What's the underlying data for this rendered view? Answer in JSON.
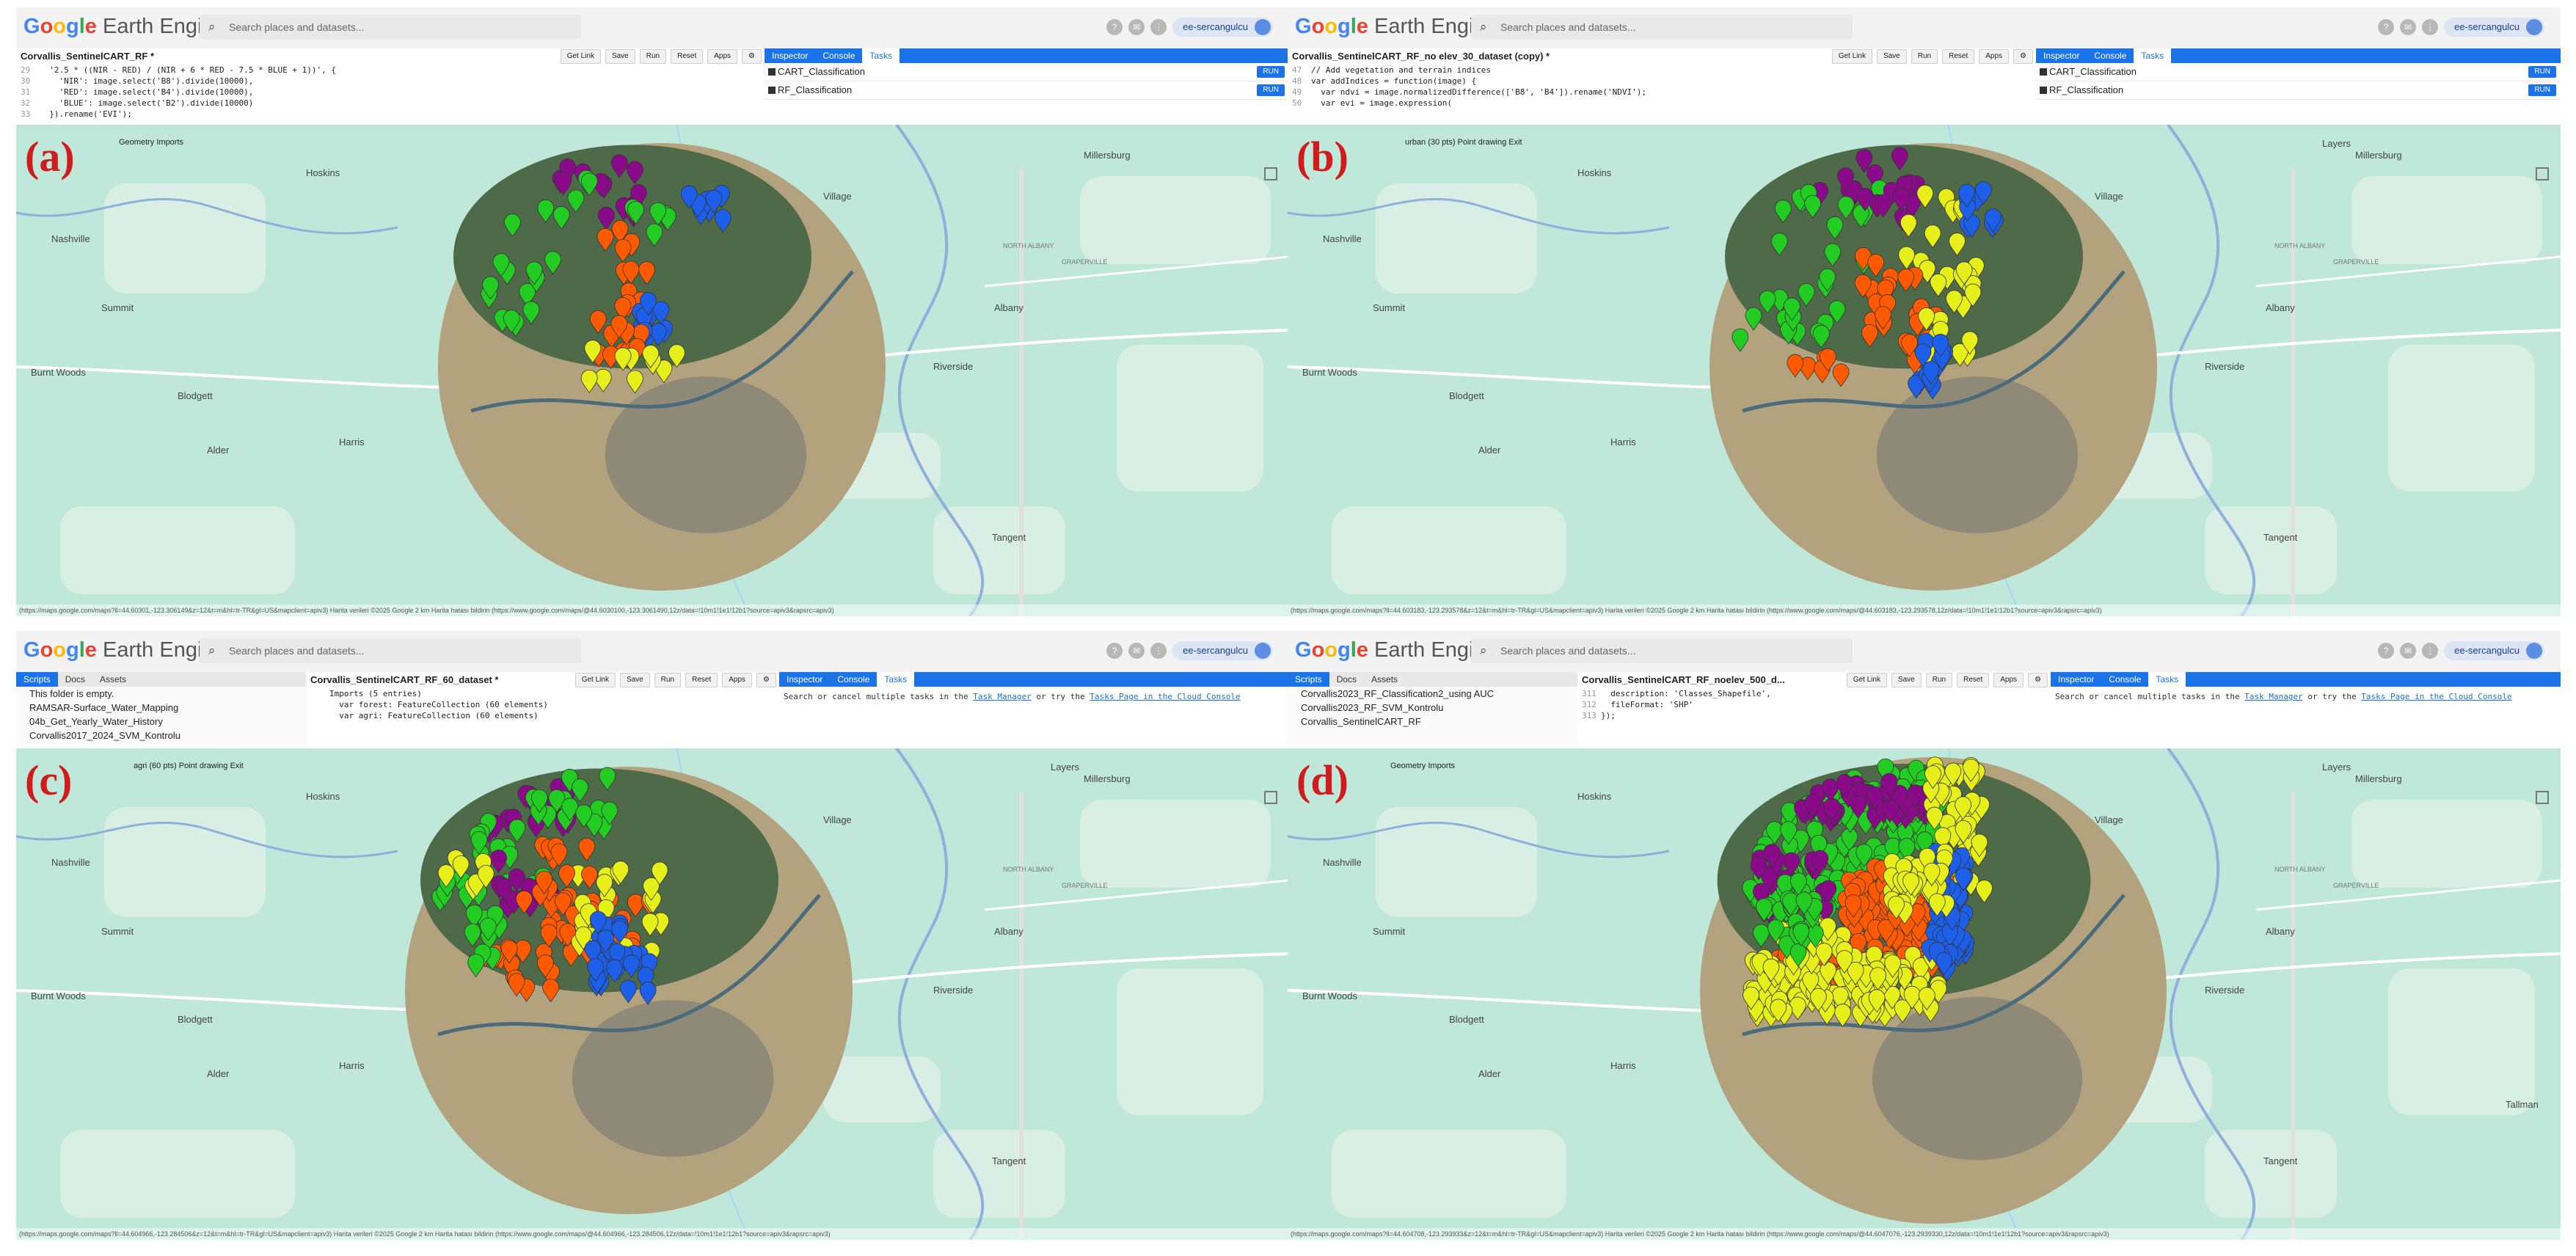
{
  "app": {
    "logo_google": "Google",
    "logo_product": "Earth Engine",
    "search_placeholder": "Search places and datasets...",
    "user": "ee-sercangulcu"
  },
  "toolbar": {
    "get_link": "Get Link",
    "save": "Save",
    "run": "Run",
    "reset": "Reset",
    "apps": "Apps"
  },
  "right_tabs": {
    "inspector": "Inspector",
    "console": "Console",
    "tasks": "Tasks"
  },
  "left_tabs": {
    "scripts": "Scripts",
    "docs": "Docs",
    "assets": "Assets"
  },
  "tasks_run": "RUN",
  "colors": {
    "green": "#22cc22",
    "purple": "#8a0a8a",
    "orange": "#ff5a00",
    "blue": "#1d5fe8",
    "yellow": "#e6ef1a"
  },
  "panels": [
    {
      "label": "(a)",
      "script_title": "Corvallis_SentinelCART_RF *",
      "code_lines": [
        {
          "n": "29",
          "t": "  '2.5 * ((NIR - RED) / (NIR + 6 * RED - 7.5 * BLUE + 1))', {"
        },
        {
          "n": "30",
          "t": "    'NIR': image.select('B8').divide(10000),"
        },
        {
          "n": "31",
          "t": "    'RED': image.select('B4').divide(10000),"
        },
        {
          "n": "32",
          "t": "    'BLUE': image.select('B2').divide(10000)"
        },
        {
          "n": "33",
          "t": "  }).rename('EVI');"
        }
      ],
      "tasks": [
        "CART_Classification",
        "RF_Classification"
      ],
      "tool_text": "Geometry Imports",
      "map_labels": [
        "Hoskins",
        "Nashville",
        "Summit",
        "Burnt Woods",
        "Blodgett",
        "Alder",
        "Harris",
        "Millersburg",
        "Village",
        "NORTH ALBANY",
        "GRAPERVILLE",
        "Albany",
        "Riverside",
        "Tangent"
      ],
      "attrib": "(https://maps.google.com/maps?ll=44.60301,-123.306149&z=12&t=m&hl=tr-TR&gl=US&mapclient=apiv3)          Harita verileri ©2025 Google  2 km          Harita hatası bildirin (https://www.google.com/maps/@44.6030100,-123.3061490,12z/data=!10m1!1e1!12b1?source=apiv3&rapsrc=apiv3)"
    },
    {
      "label": "(b)",
      "script_title": "Corvallis_SentinelCART_RF_no elev_30_dataset (copy) *",
      "code_lines": [
        {
          "n": "47",
          "t": "// Add vegetation and terrain indices"
        },
        {
          "n": "48",
          "t": "var addIndices = function(image) {"
        },
        {
          "n": "49",
          "t": "  var ndvi = image.normalizedDifference(['B8', 'B4']).rename('NDVI');"
        },
        {
          "n": "50",
          "t": "  var evi = image.expression("
        }
      ],
      "tasks": [
        "CART_Classification",
        "RF_Classification"
      ],
      "tool_text": "urban (30 pts)   Point drawing   Exit",
      "map_labels": [
        "Hoskins",
        "Nashville",
        "Summit",
        "Burnt Woods",
        "Blodgett",
        "Alder",
        "Harris",
        "Millersburg",
        "Village",
        "NORTH ALBANY",
        "GRAPERVILLE",
        "Albany",
        "Riverside",
        "Tangent",
        "Layers"
      ],
      "attrib": "(https://maps.google.com/maps?ll=44.603183,-123.293578&z=12&t=m&hl=tr-TR&gl=US&mapclient=apiv3)          Harita verileri ©2025 Google  2 km          Harita hatası bildirin (https://www.google.com/maps/@44.603183,-123.293578,12z/data=!10m1!1e1!12b1?source=apiv3&rapsrc=apiv3)"
    },
    {
      "label": "(c)",
      "script_title": "Corvallis_SentinelCART_RF_60_dataset *",
      "scripts_lines": [
        "This folder is empty.",
        "RAMSAR-Surface_Water_Mapping",
        "04b_Get_Yearly_Water_History",
        "Corvallis2017_2024_SVM_Kontrolu"
      ],
      "code_lines": [
        {
          "n": "",
          "t": "Imports (5 entries)"
        },
        {
          "n": "",
          "t": "  var forest: FeatureCollection (60 elements)"
        },
        {
          "n": "",
          "t": "  var agri: FeatureCollection (60 elements)"
        }
      ],
      "right_text": "Search or cancel multiple tasks in the",
      "right_link1": "Task Manager",
      "right_mid": "or try the",
      "right_link2": "Tasks Page in the Cloud Console",
      "tool_text": "agri (60 pts)   Point drawing   Exit",
      "map_labels": [
        "Hoskins",
        "Nashville",
        "Summit",
        "Burnt Woods",
        "Blodgett",
        "Alder",
        "Harris",
        "Millersburg",
        "Village",
        "NORTH ALBANY",
        "GRAPERVILLE",
        "Albany",
        "Riverside",
        "Tangent",
        "Layers"
      ],
      "attrib": "(https://maps.google.com/maps?ll=44.604966,-123.284506&z=12&t=m&hl=tr-TR&gl=US&mapclient=apiv3)          Harita verileri ©2025 Google  2 km          Harita hatası bildirin (https://www.google.com/maps/@44.604966,-123.284506,12z/data=!10m1!1e1!12b1?source=apiv3&rapsrc=apiv3)"
    },
    {
      "label": "(d)",
      "script_title": "Corvallis_SentinelCART_RF_noelev_500_d...",
      "scripts_lines": [
        "Corvallis2023_RF_Classification2_using AUC",
        "Corvallis2023_RF_SVM_Kontrolu",
        "Corvallis_SentinelCART_RF"
      ],
      "code_lines": [
        {
          "n": "311",
          "t": "  description: 'Classes_Shapefile',"
        },
        {
          "n": "312",
          "t": "  fileFormat: 'SHP'"
        },
        {
          "n": "313",
          "t": "});"
        }
      ],
      "right_text": "Search or cancel multiple tasks in the",
      "right_link1": "Task Manager",
      "right_mid": "or try the",
      "right_link2": "Tasks Page in the Cloud Console",
      "tool_text": "Geometry Imports",
      "map_labels": [
        "Hoskins",
        "Nashville",
        "Summit",
        "Burnt Woods",
        "Blodgett",
        "Alder",
        "Harris",
        "Millersburg",
        "Village",
        "NORTH ALBANY",
        "GRAPERVILLE",
        "Albany",
        "Riverside",
        "Tangent",
        "Tallman",
        "Layers"
      ],
      "attrib": "(https://maps.google.com/maps?ll=44.604708,-123.293933&z=12&t=m&hl=tr-TR&gl=US&mapclient=apiv3)          Harita verileri ©2025 Google  2 km          Harita hatası bildirin (https://www.google.com/maps/@44.6047076,-123.2939330,12z/data=!10m1!1e1!12b1?source=apiv3&rapsrc=apiv3)"
    }
  ]
}
